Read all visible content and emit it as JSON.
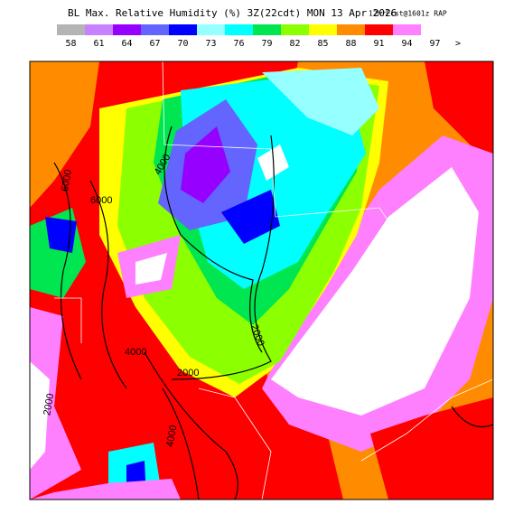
{
  "header": {
    "title": "BL Max. Relative Humidity (%) 3Z(22cdt) MON 13 Apr 2026",
    "model": "12hrFcst@1601z RAP"
  },
  "colorbar": {
    "levels": [
      58,
      61,
      64,
      67,
      70,
      73,
      76,
      79,
      82,
      85,
      88,
      91,
      94,
      97
    ],
    "colors": [
      "#b4b4b4",
      "#c882ff",
      "#9600ff",
      "#6464ff",
      "#0000ff",
      "#96ffff",
      "#00ffff",
      "#00e650",
      "#8cff00",
      "#ffff00",
      "#ff8c00",
      "#ff0000",
      "#ff80ff",
      "#ffffff"
    ],
    "overflow_label": ">"
  },
  "contour_labels": [
    "6000",
    "6000",
    "4000",
    "4000",
    "2000",
    "2000",
    "4000",
    "2000"
  ]
}
